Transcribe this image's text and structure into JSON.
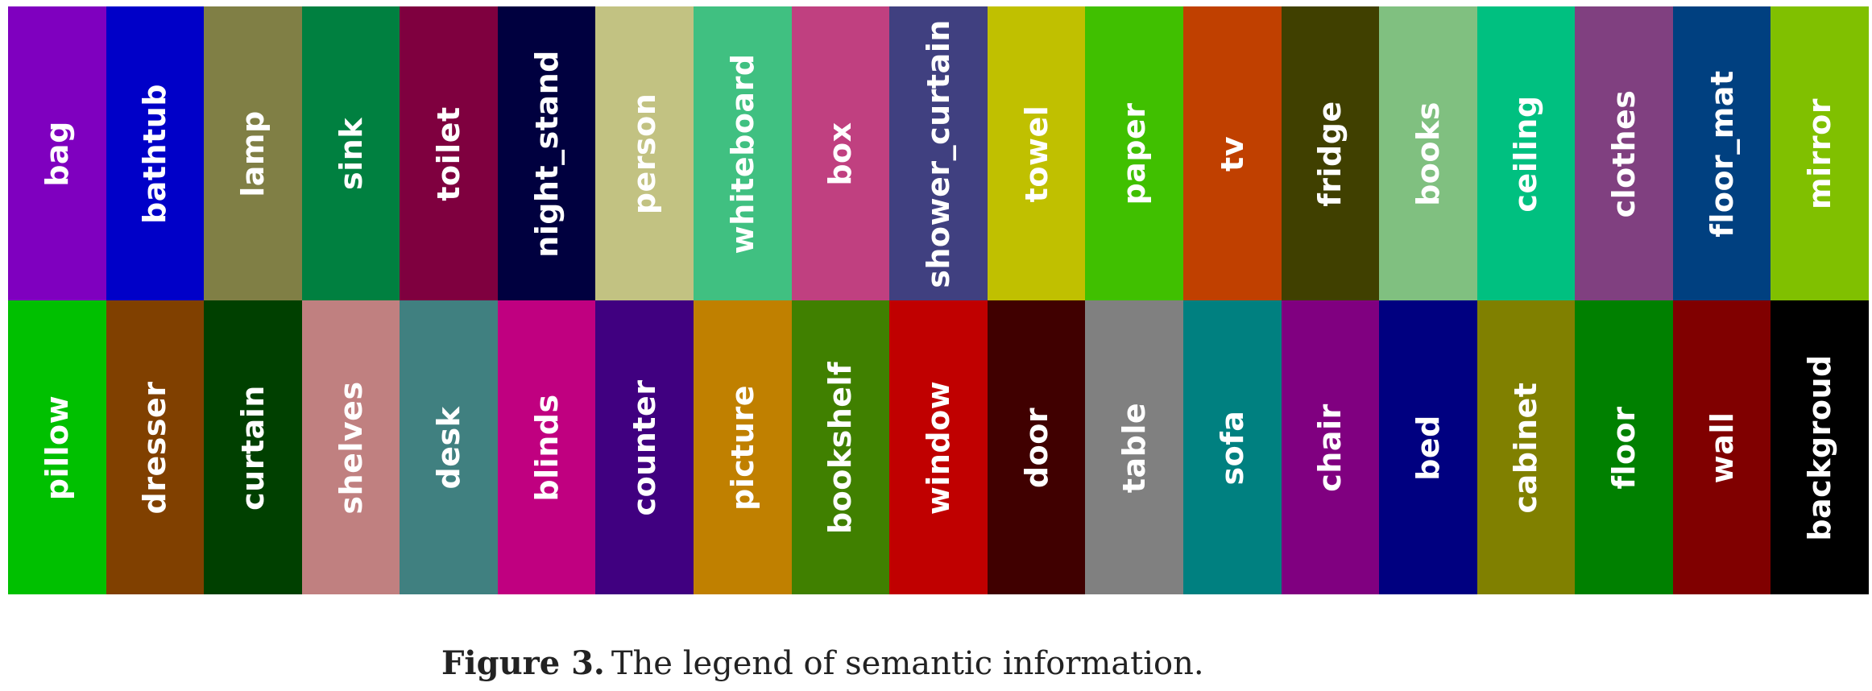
{
  "legend": {
    "rows": [
      [
        {
          "label": "bag",
          "color": "#7F00BF"
        },
        {
          "label": "bathtub",
          "color": "#0000C8"
        },
        {
          "label": "lamp",
          "color": "#807F45"
        },
        {
          "label": "sink",
          "color": "#008040"
        },
        {
          "label": "toilet",
          "color": "#7F003F"
        },
        {
          "label": "night_stand",
          "color": "#00003F"
        },
        {
          "label": "person",
          "color": "#C2C282"
        },
        {
          "label": "whiteboard",
          "color": "#40C081"
        },
        {
          "label": "box",
          "color": "#C04080"
        },
        {
          "label": "shower_curtain",
          "color": "#404080"
        },
        {
          "label": "towel",
          "color": "#C0C000"
        },
        {
          "label": "paper",
          "color": "#40C000"
        },
        {
          "label": "tv",
          "color": "#C04000"
        },
        {
          "label": "fridge",
          "color": "#404000"
        },
        {
          "label": "books",
          "color": "#80C080"
        },
        {
          "label": "ceiling",
          "color": "#00C080"
        },
        {
          "label": "clothes",
          "color": "#804080"
        },
        {
          "label": "floor_mat",
          "color": "#004080"
        },
        {
          "label": "mirror",
          "color": "#80C000"
        }
      ],
      [
        {
          "label": "pillow",
          "color": "#00C000"
        },
        {
          "label": "dresser",
          "color": "#804000"
        },
        {
          "label": "curtain",
          "color": "#004000"
        },
        {
          "label": "shelves",
          "color": "#C08080"
        },
        {
          "label": "desk",
          "color": "#408080"
        },
        {
          "label": "blinds",
          "color": "#C00080"
        },
        {
          "label": "counter",
          "color": "#400080"
        },
        {
          "label": "picture",
          "color": "#C08000"
        },
        {
          "label": "bookshelf",
          "color": "#408000"
        },
        {
          "label": "window",
          "color": "#C00000"
        },
        {
          "label": "door",
          "color": "#400000"
        },
        {
          "label": "table",
          "color": "#808080"
        },
        {
          "label": "sofa",
          "color": "#008080"
        },
        {
          "label": "chair",
          "color": "#800080"
        },
        {
          "label": "bed",
          "color": "#000080"
        },
        {
          "label": "cabinet",
          "color": "#808000"
        },
        {
          "label": "floor",
          "color": "#008000"
        },
        {
          "label": "wall",
          "color": "#800000"
        },
        {
          "label": "backgroud",
          "color": "#000000"
        }
      ]
    ]
  },
  "caption": {
    "prefix": "Figure 3.",
    "text": "The legend of semantic information."
  }
}
